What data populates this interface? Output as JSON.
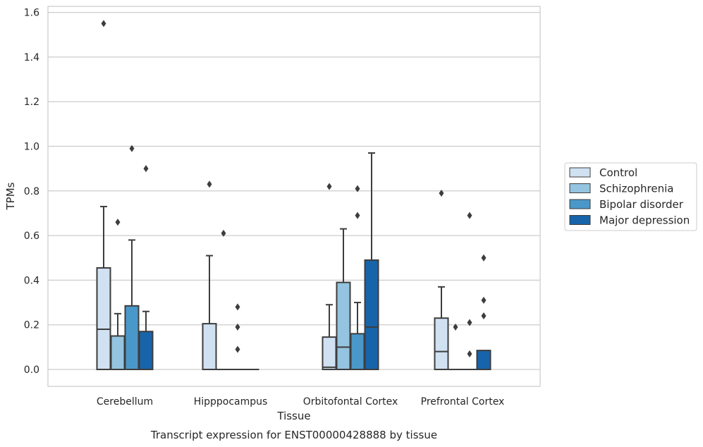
{
  "chart_data": {
    "type": "box",
    "title": "Transcript expression for ENST00000428888 by tissue",
    "xlabel": "Tissue",
    "ylabel": "TPMs",
    "ylim": [
      -0.075,
      1.63
    ],
    "yticks": [
      "0.0",
      "0.2",
      "0.4",
      "0.6",
      "0.8",
      "1.0",
      "1.2",
      "1.4",
      "1.6"
    ],
    "grid": true,
    "legend_position": "right",
    "categories": [
      "Cerebellum",
      "Hipppocampus",
      "Orbitofontal Cortex",
      "Prefrontal Cortex"
    ],
    "series": [
      {
        "name": "Control",
        "color": "#d0e1f2",
        "boxes": [
          {
            "q1": 0.0,
            "median": 0.18,
            "q3": 0.455,
            "whisker_low": 0.0,
            "whisker_high": 0.73,
            "outliers": [
              1.55
            ]
          },
          {
            "q1": 0.0,
            "median": 0.0,
            "q3": 0.205,
            "whisker_low": 0.0,
            "whisker_high": 0.51,
            "outliers": [
              0.83
            ]
          },
          {
            "q1": 0.0,
            "median": 0.01,
            "q3": 0.145,
            "whisker_low": 0.0,
            "whisker_high": 0.29,
            "outliers": [
              0.82
            ]
          },
          {
            "q1": 0.0,
            "median": 0.08,
            "q3": 0.23,
            "whisker_low": 0.0,
            "whisker_high": 0.37,
            "outliers": [
              0.79
            ]
          }
        ]
      },
      {
        "name": "Schizophrenia",
        "color": "#94c4df",
        "boxes": [
          {
            "q1": 0.0,
            "median": 0.0,
            "q3": 0.15,
            "whisker_low": 0.0,
            "whisker_high": 0.25,
            "outliers": [
              0.66
            ]
          },
          {
            "q1": 0.0,
            "median": 0.0,
            "q3": 0.0,
            "whisker_low": 0.0,
            "whisker_high": 0.0,
            "outliers": [
              0.61
            ]
          },
          {
            "q1": 0.0,
            "median": 0.1,
            "q3": 0.39,
            "whisker_low": 0.0,
            "whisker_high": 0.63,
            "outliers": []
          },
          {
            "q1": 0.0,
            "median": 0.0,
            "q3": 0.0,
            "whisker_low": 0.0,
            "whisker_high": 0.0,
            "outliers": [
              0.19
            ]
          }
        ]
      },
      {
        "name": "Bipolar disorder",
        "color": "#4a98c9",
        "boxes": [
          {
            "q1": 0.0,
            "median": 0.0,
            "q3": 0.285,
            "whisker_low": 0.0,
            "whisker_high": 0.58,
            "outliers": [
              0.99
            ]
          },
          {
            "q1": 0.0,
            "median": 0.0,
            "q3": 0.0,
            "whisker_low": 0.0,
            "whisker_high": 0.0,
            "outliers": [
              0.28,
              0.19,
              0.09
            ]
          },
          {
            "q1": 0.0,
            "median": 0.0,
            "q3": 0.16,
            "whisker_low": 0.0,
            "whisker_high": 0.3,
            "outliers": [
              0.81,
              0.69
            ]
          },
          {
            "q1": 0.0,
            "median": 0.0,
            "q3": 0.0,
            "whisker_low": 0.0,
            "whisker_high": 0.0,
            "outliers": [
              0.69,
              0.21,
              0.07
            ]
          }
        ]
      },
      {
        "name": "Major depression",
        "color": "#1764ab",
        "boxes": [
          {
            "q1": 0.0,
            "median": 0.0,
            "q3": 0.17,
            "whisker_low": 0.0,
            "whisker_high": 0.26,
            "outliers": [
              0.9
            ]
          },
          {
            "q1": 0.0,
            "median": 0.0,
            "q3": 0.0,
            "whisker_low": 0.0,
            "whisker_high": 0.0,
            "outliers": []
          },
          {
            "q1": 0.0,
            "median": 0.19,
            "q3": 0.49,
            "whisker_low": 0.0,
            "whisker_high": 0.97,
            "outliers": []
          },
          {
            "q1": 0.0,
            "median": 0.0,
            "q3": 0.085,
            "whisker_low": 0.0,
            "whisker_high": 0.085,
            "outliers": [
              0.5,
              0.31,
              0.24
            ]
          }
        ]
      }
    ]
  }
}
